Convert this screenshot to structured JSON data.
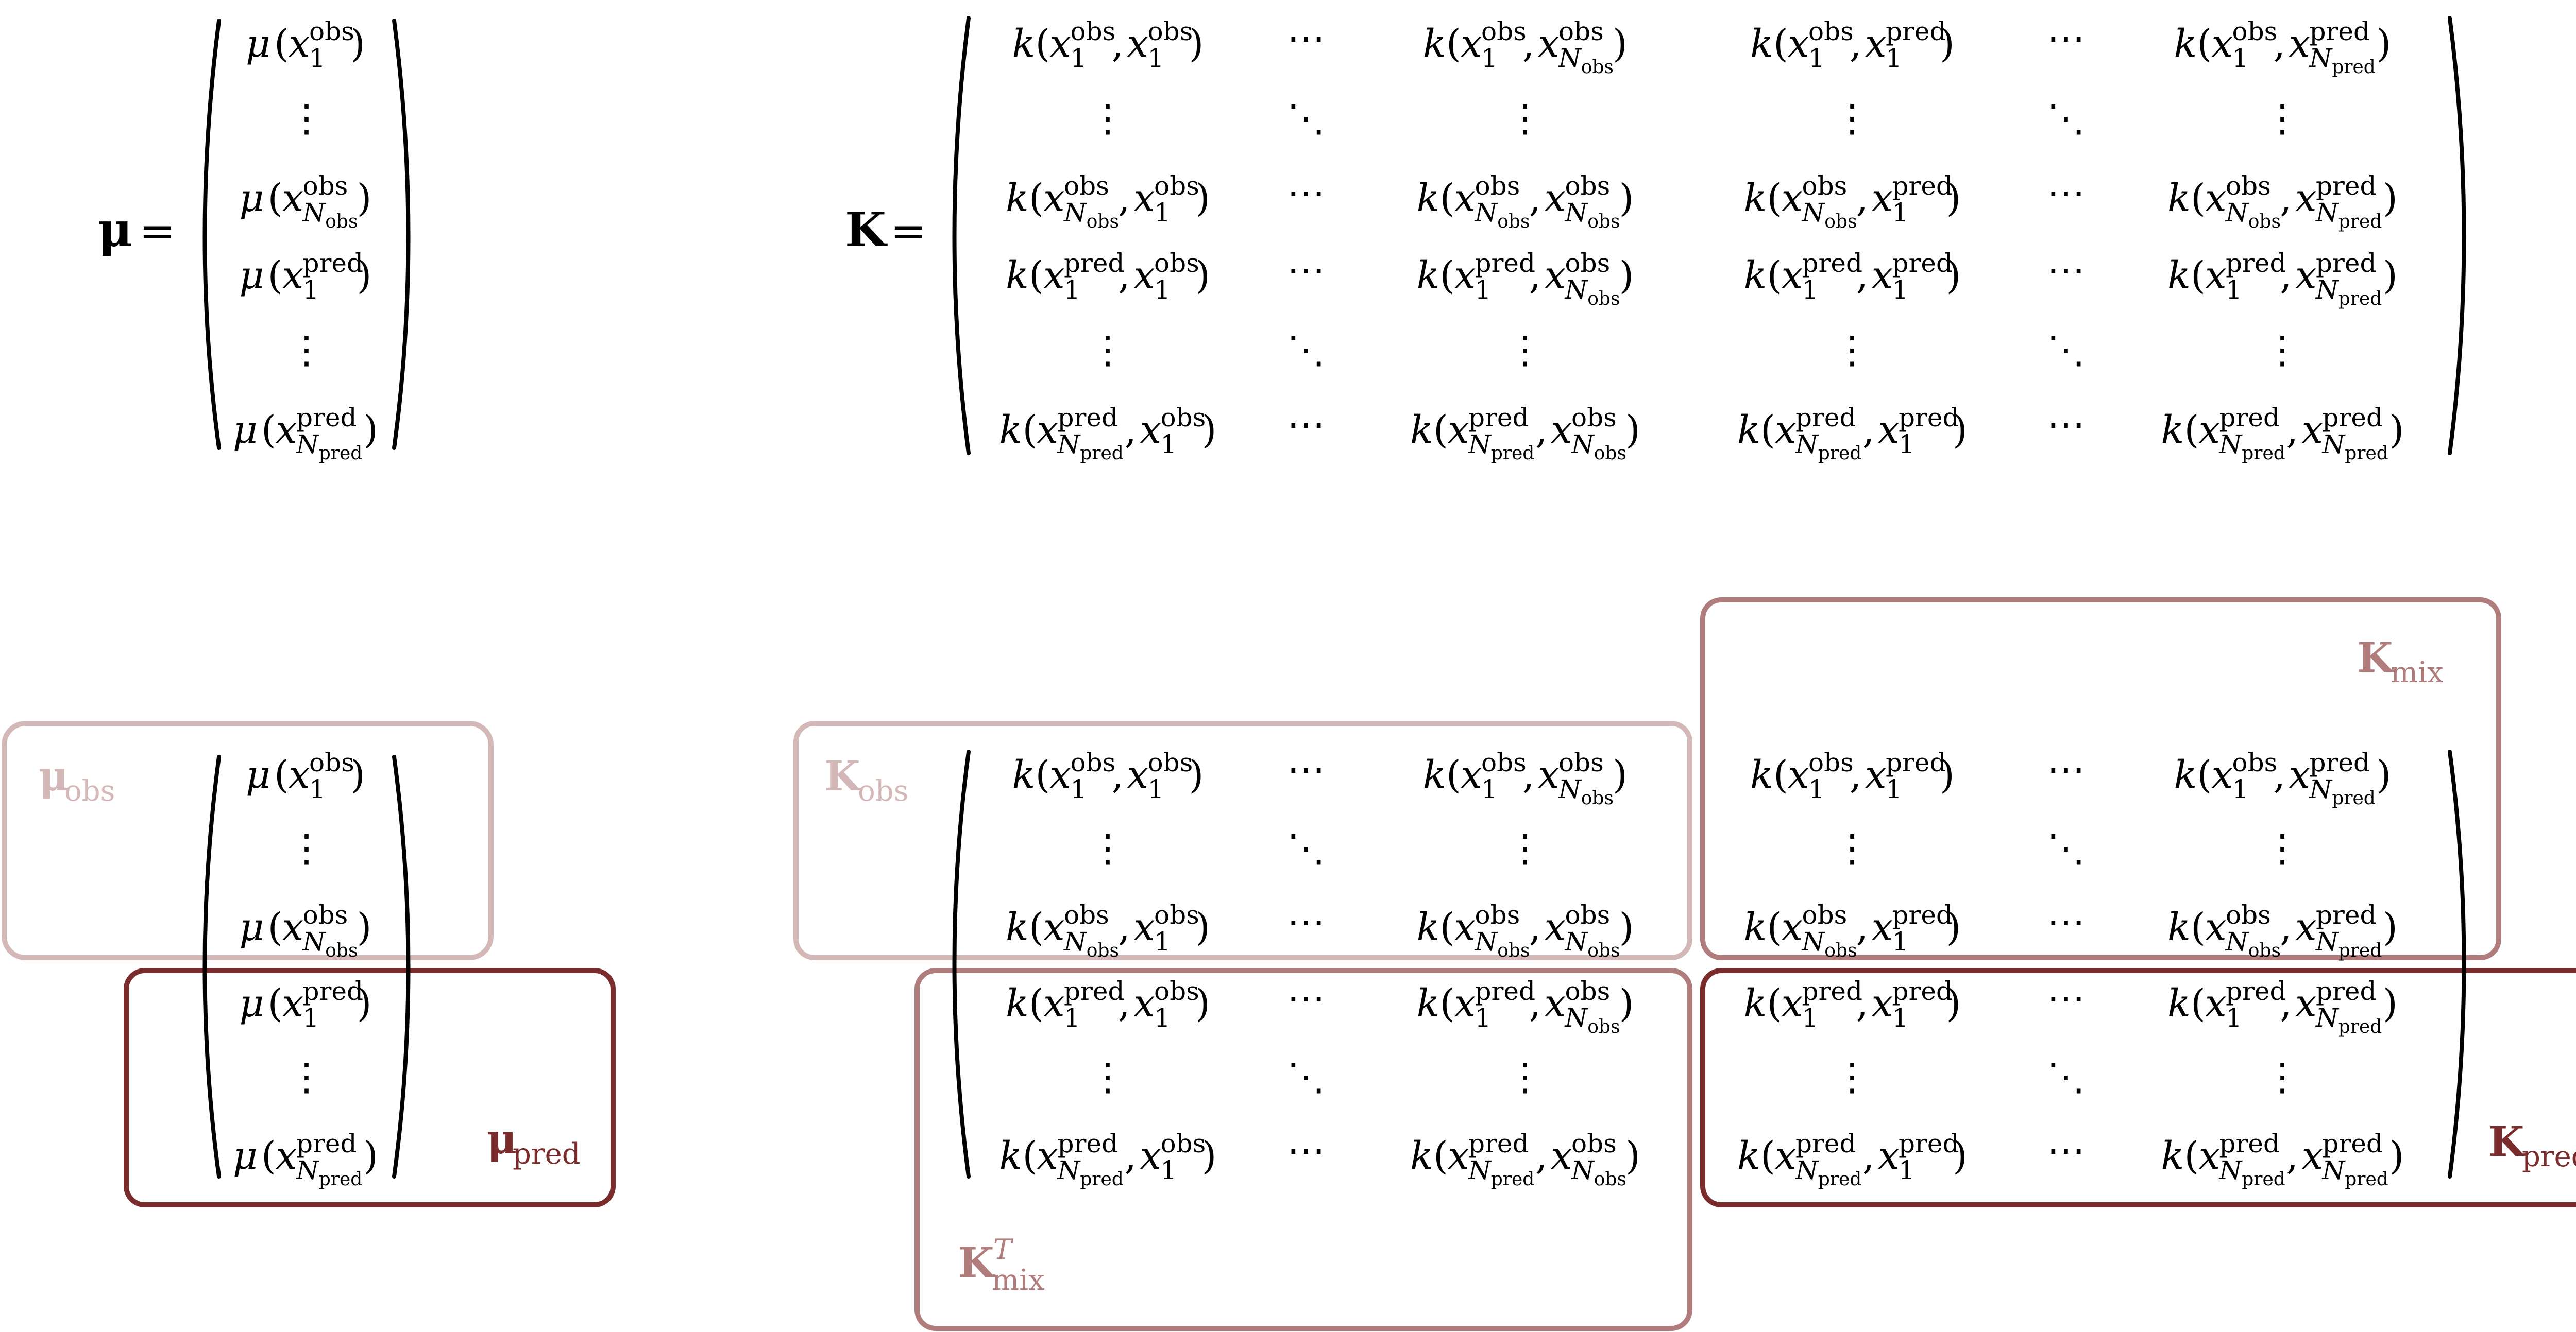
{
  "colors": {
    "obs": "#d4b8b8",
    "mix": "#b07c7c",
    "pred": "#7a2b2b",
    "ink": "#000000"
  },
  "top": {
    "mu_lhs": {
      "symbol": "μ",
      "equals": "="
    },
    "K_lhs": {
      "symbol": "K",
      "equals": "="
    }
  },
  "labels": {
    "mu_obs": {
      "base": "μ",
      "sub": "obs"
    },
    "mu_pred": {
      "base": "μ",
      "sub": "pred"
    },
    "K_obs": {
      "base": "K",
      "sub": "obs"
    },
    "K_mix": {
      "base": "K",
      "sub": "mix"
    },
    "K_mix_T": {
      "base": "K",
      "sub": "mix",
      "sup": "T"
    },
    "K_pred": {
      "base": "K",
      "sub": "pred"
    }
  },
  "symbols": {
    "cdots": "⋯",
    "vdots": "⋮",
    "ddots": "⋱",
    "mu": "μ",
    "k": "k",
    "x": "x",
    "obs": "obs",
    "pred": "pred",
    "one": "1",
    "N": "N"
  }
}
